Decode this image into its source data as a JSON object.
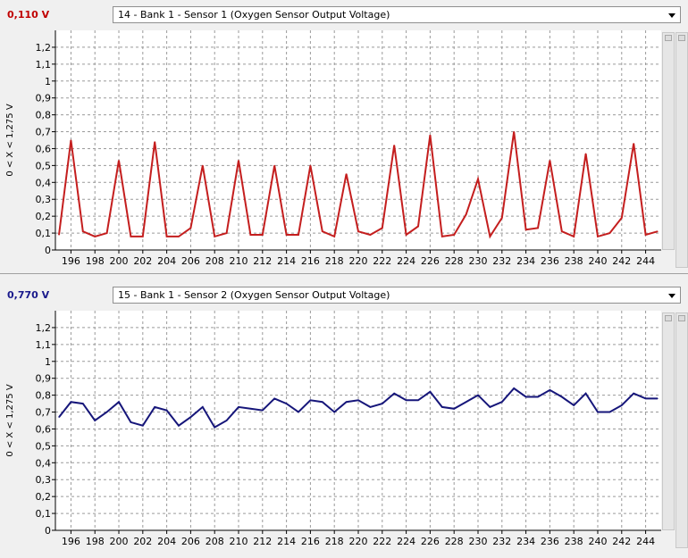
{
  "panels": [
    {
      "readout": "0,110 V",
      "readout_color": "#c00000",
      "sensor_label": "14 - Bank 1 - Sensor 1 (Oxygen Sensor Output Voltage)",
      "line_color": "#c41e1e"
    },
    {
      "readout": "0,770 V",
      "readout_color": "#1a1a8c",
      "sensor_label": "15 - Bank 1 - Sensor 2 (Oxygen Sensor Output Voltage)",
      "line_color": "#16167a"
    }
  ],
  "chart_data": [
    {
      "type": "line",
      "ylabel": "0  < X <  1,275 V",
      "xlim": [
        194.7,
        245.3
      ],
      "ylim": [
        0,
        1.3
      ],
      "x_ticks": [
        "196",
        "198",
        "200",
        "202",
        "204",
        "206",
        "208",
        "210",
        "212",
        "214",
        "216",
        "218",
        "220",
        "222",
        "224",
        "226",
        "228",
        "230",
        "232",
        "234",
        "236",
        "238",
        "240",
        "242",
        "244"
      ],
      "y_ticks": [
        "0",
        "0,1",
        "0,2",
        "0,3",
        "0,4",
        "0,5",
        "0,6",
        "0,7",
        "0,8",
        "0,9",
        "1",
        "1,1",
        "1,2"
      ],
      "grid": true,
      "series": [
        {
          "x": [
            195,
            196,
            197,
            198,
            199,
            200,
            201,
            202,
            203,
            204,
            205,
            206,
            207,
            208,
            209,
            210,
            211,
            212,
            213,
            214,
            215,
            216,
            217,
            218,
            219,
            220,
            221,
            222,
            223,
            224,
            225,
            226,
            227,
            228,
            229,
            230,
            231,
            232,
            233,
            234,
            235,
            236,
            237,
            238,
            239,
            240,
            241,
            242,
            243,
            244,
            245
          ],
          "values": [
            0.09,
            0.65,
            0.11,
            0.08,
            0.1,
            0.53,
            0.08,
            0.08,
            0.64,
            0.08,
            0.08,
            0.13,
            0.5,
            0.08,
            0.1,
            0.53,
            0.09,
            0.09,
            0.5,
            0.09,
            0.09,
            0.5,
            0.11,
            0.08,
            0.45,
            0.11,
            0.09,
            0.13,
            0.62,
            0.09,
            0.14,
            0.68,
            0.08,
            0.09,
            0.21,
            0.42,
            0.08,
            0.19,
            0.7,
            0.12,
            0.13,
            0.53,
            0.11,
            0.08,
            0.57,
            0.08,
            0.1,
            0.19,
            0.63,
            0.09,
            0.11
          ]
        }
      ]
    },
    {
      "type": "line",
      "ylabel": "0  < X <  1,275 V",
      "xlim": [
        194.7,
        245.3
      ],
      "ylim": [
        0,
        1.3
      ],
      "x_ticks": [
        "196",
        "198",
        "200",
        "202",
        "204",
        "206",
        "208",
        "210",
        "212",
        "214",
        "216",
        "218",
        "220",
        "222",
        "224",
        "226",
        "228",
        "230",
        "232",
        "234",
        "236",
        "238",
        "240",
        "242",
        "244"
      ],
      "y_ticks": [
        "0",
        "0,1",
        "0,2",
        "0,3",
        "0,4",
        "0,5",
        "0,6",
        "0,7",
        "0,8",
        "0,9",
        "1",
        "1,1",
        "1,2"
      ],
      "grid": true,
      "series": [
        {
          "x": [
            195,
            196,
            197,
            198,
            199,
            200,
            201,
            202,
            203,
            204,
            205,
            206,
            207,
            208,
            209,
            210,
            211,
            212,
            213,
            214,
            215,
            216,
            217,
            218,
            219,
            220,
            221,
            222,
            223,
            224,
            225,
            226,
            227,
            228,
            229,
            230,
            231,
            232,
            233,
            234,
            235,
            236,
            237,
            238,
            239,
            240,
            241,
            242,
            243,
            244,
            245
          ],
          "values": [
            0.67,
            0.76,
            0.75,
            0.65,
            0.7,
            0.76,
            0.64,
            0.62,
            0.73,
            0.71,
            0.62,
            0.67,
            0.73,
            0.61,
            0.65,
            0.73,
            0.72,
            0.71,
            0.78,
            0.75,
            0.7,
            0.77,
            0.76,
            0.7,
            0.76,
            0.77,
            0.73,
            0.75,
            0.81,
            0.77,
            0.77,
            0.82,
            0.73,
            0.72,
            0.76,
            0.8,
            0.73,
            0.76,
            0.84,
            0.79,
            0.79,
            0.83,
            0.79,
            0.74,
            0.81,
            0.7,
            0.7,
            0.74,
            0.81,
            0.78,
            0.78
          ]
        }
      ]
    }
  ]
}
